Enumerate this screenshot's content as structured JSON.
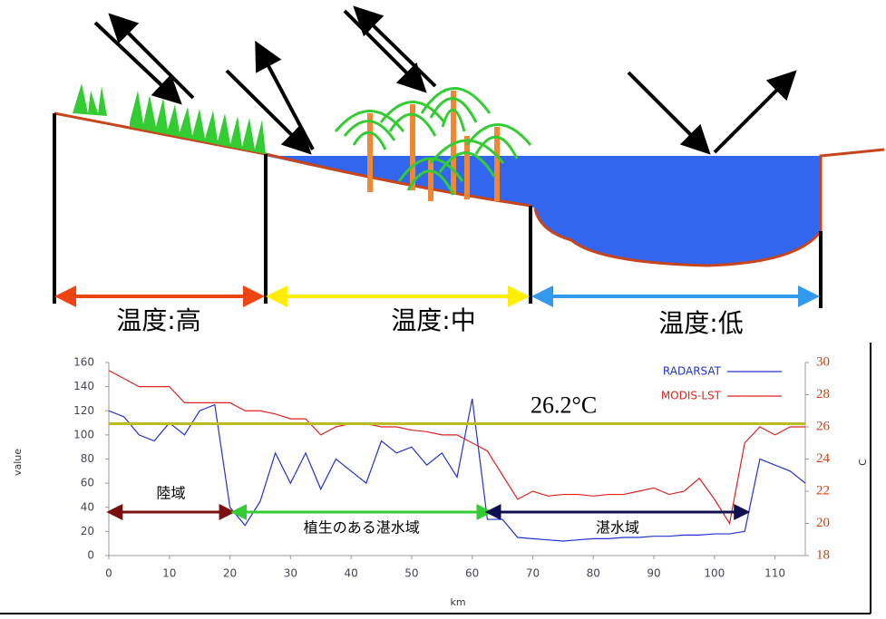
{
  "diagram": {
    "labels": [
      "温度:高",
      "温度:中",
      "温度:低"
    ]
  },
  "chart_data": {
    "type": "line",
    "xlabel": "km",
    "ylabel": "value",
    "y2label": "C",
    "x": [
      0,
      2.5,
      5,
      7.5,
      10,
      12.5,
      15,
      17.5,
      20,
      22.5,
      25,
      27.5,
      30,
      32.5,
      35,
      37.5,
      40,
      42.5,
      45,
      47.5,
      50,
      52.5,
      55,
      57.5,
      60,
      62.5,
      65,
      67.5,
      70,
      72.5,
      75,
      77.5,
      80,
      82.5,
      85,
      87.5,
      90,
      92.5,
      95,
      97.5,
      100,
      102.5,
      105,
      107.5,
      110,
      112.5,
      115
    ],
    "series": [
      {
        "name": "RADARSAT",
        "color": "#2233cc",
        "values": [
          120,
          115,
          100,
          95,
          110,
          100,
          120,
          125,
          40,
          25,
          45,
          85,
          60,
          85,
          55,
          80,
          70,
          60,
          95,
          85,
          90,
          75,
          85,
          65,
          130,
          30,
          30,
          15,
          14,
          13,
          12,
          13,
          14,
          14,
          15,
          15,
          16,
          16,
          17,
          17,
          18,
          18,
          20,
          80,
          75,
          70,
          60
        ]
      },
      {
        "name": "MODIS-LST",
        "color": "#dd2222",
        "axis": "y2",
        "values": [
          29.5,
          29,
          28.5,
          28.5,
          28.5,
          27.5,
          27.5,
          27.5,
          27.5,
          27,
          27,
          26.8,
          26.5,
          26.5,
          25.5,
          26,
          26.2,
          26.2,
          26,
          26,
          25.8,
          25.7,
          25.5,
          25.5,
          25,
          24.5,
          23,
          21.5,
          22,
          21.7,
          21.8,
          21.8,
          21.7,
          21.8,
          21.8,
          22,
          22.2,
          21.8,
          22,
          22.8,
          21.5,
          20,
          25,
          26,
          25.5,
          26,
          26
        ]
      }
    ],
    "xlim": [
      0,
      115
    ],
    "xticks": [
      0,
      10,
      20,
      30,
      40,
      50,
      60,
      70,
      80,
      90,
      100,
      110
    ],
    "ylim": [
      0,
      160
    ],
    "yticks": [
      0,
      20,
      40,
      60,
      80,
      100,
      120,
      140,
      160
    ],
    "y2lim": [
      18,
      30
    ],
    "y2ticks": [
      18,
      20,
      22,
      24,
      26,
      28,
      30
    ],
    "threshold": {
      "label": "26.2°C",
      "value": 26.2,
      "color": "#bbbb22"
    },
    "regions": [
      {
        "label": "陸域",
        "x": [
          0.5,
          20
        ],
        "color": "#7a1010"
      },
      {
        "label": "植生のある湛水域",
        "x": [
          21,
          62.5
        ],
        "color": "#33cc33"
      },
      {
        "label": "湛水域",
        "x": [
          63,
          105
        ],
        "color": "#101050"
      }
    ]
  }
}
